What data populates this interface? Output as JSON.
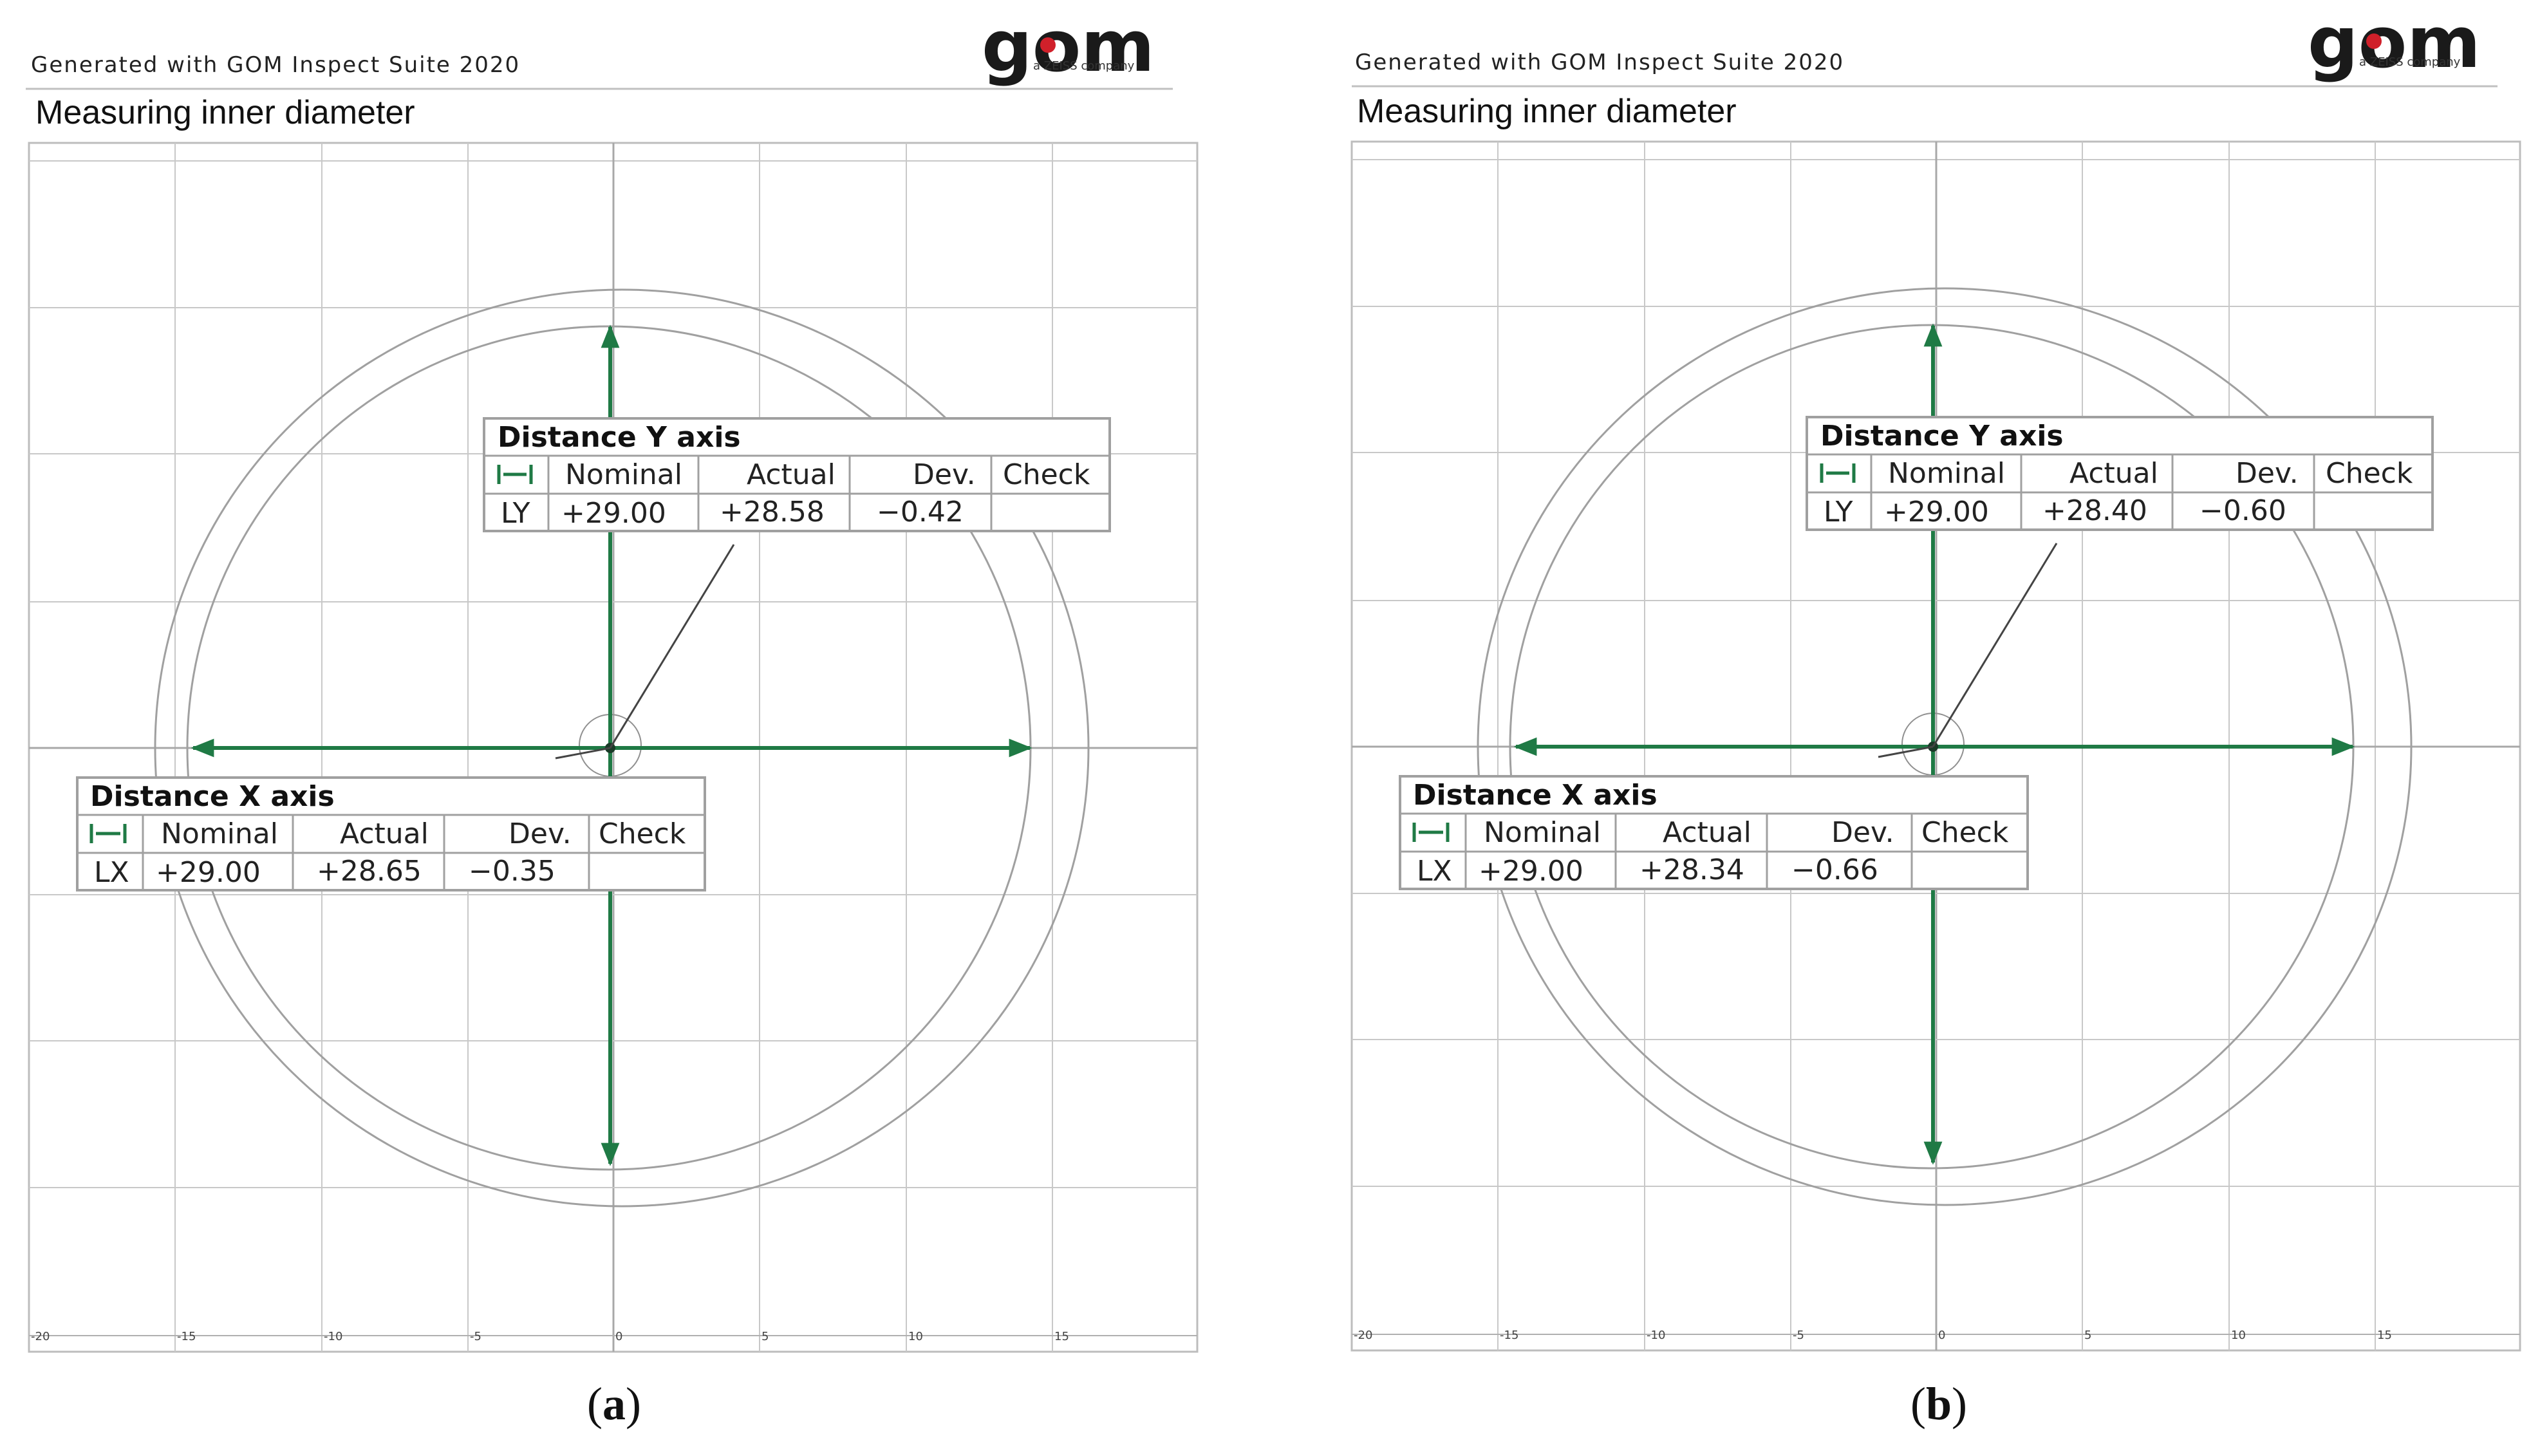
{
  "figure": {
    "panels": [
      {
        "id": "a",
        "caption_letter": "a",
        "header": {
          "generated_text": "Generated with GOM Inspect Suite 2020",
          "logo_text": "gom",
          "logo_subtext": "a ZEISS company"
        },
        "title": "Measuring inner diameter",
        "axis": {
          "x_ticks": [
            "-20",
            "-15",
            "-10",
            "-5",
            "0",
            "5",
            "10",
            "15"
          ]
        },
        "label_y": {
          "title": "Distance Y axis",
          "columns": [
            "Nominal",
            "Actual",
            "Dev.",
            "Check"
          ],
          "row": {
            "name": "LY",
            "nominal": "+29.00",
            "actual": "+28.58",
            "dev": "−0.42",
            "check": ""
          }
        },
        "label_x": {
          "title": "Distance X axis",
          "columns": [
            "Nominal",
            "Actual",
            "Dev.",
            "Check"
          ],
          "row": {
            "name": "LX",
            "nominal": "+29.00",
            "actual": "+28.65",
            "dev": "−0.35",
            "check": ""
          }
        }
      },
      {
        "id": "b",
        "caption_letter": "b",
        "header": {
          "generated_text": "Generated with GOM Inspect Suite 2020",
          "logo_text": "gom",
          "logo_subtext": "a ZEISS company"
        },
        "title": "Measuring inner diameter",
        "axis": {
          "x_ticks": [
            "-20",
            "-15",
            "-10",
            "-5",
            "0",
            "5",
            "10",
            "15"
          ]
        },
        "label_y": {
          "title": "Distance Y axis",
          "columns": [
            "Nominal",
            "Actual",
            "Dev.",
            "Check"
          ],
          "row": {
            "name": "LY",
            "nominal": "+29.00",
            "actual": "+28.40",
            "dev": "−0.60",
            "check": ""
          }
        },
        "label_x": {
          "title": "Distance X axis",
          "columns": [
            "Nominal",
            "Actual",
            "Dev.",
            "Check"
          ],
          "row": {
            "name": "LX",
            "nominal": "+29.00",
            "actual": "+28.34",
            "dev": "−0.66",
            "check": ""
          }
        }
      }
    ],
    "colors": {
      "measure_green": "#1f7a45",
      "grid": "#c8c8c8",
      "circle": "#9a9a9a",
      "table_border": "#a0a0a0",
      "logo_dark": "#1a1a1a",
      "logo_red": "#d0202a"
    },
    "icons": {
      "distance_icon": "distance-arrows-icon"
    }
  }
}
